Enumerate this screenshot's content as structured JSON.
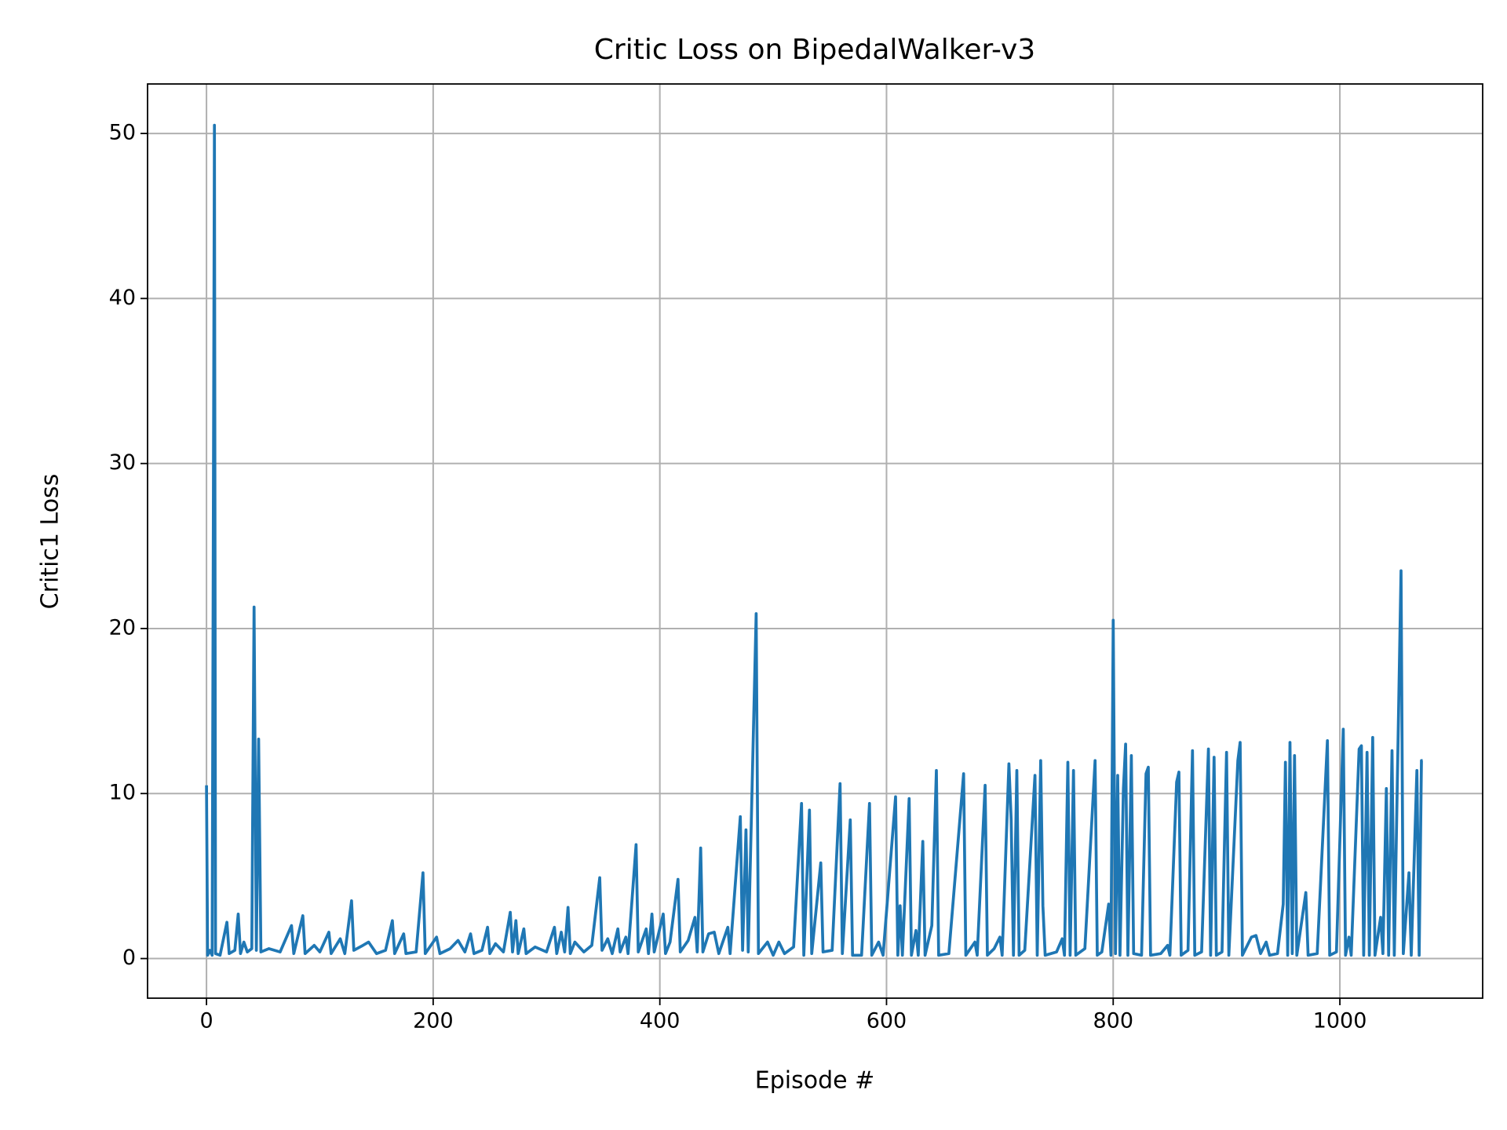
{
  "chart_data": {
    "type": "line",
    "title": "Critic Loss on BipedalWalker-v3",
    "x_label": "Episode #",
    "y_label": "Critic1 Loss",
    "color": "#1f77b4",
    "grid": true,
    "xlim": [
      -52,
      1126
    ],
    "ylim": [
      -2.4,
      53
    ],
    "xticks": [
      0,
      200,
      400,
      600,
      800,
      1000
    ],
    "yticks": [
      0,
      10,
      20,
      30,
      40,
      50
    ],
    "x": [
      0,
      1,
      3,
      5,
      7,
      8,
      12,
      18,
      20,
      25,
      28,
      30,
      33,
      36,
      40,
      42,
      44,
      46,
      48,
      55,
      65,
      75,
      77,
      85,
      87,
      95,
      100,
      108,
      110,
      118,
      122,
      128,
      130,
      138,
      143,
      150,
      158,
      164,
      166,
      174,
      176,
      185,
      191,
      193,
      200,
      203,
      206,
      215,
      222,
      228,
      233,
      236,
      243,
      248,
      250,
      255,
      262,
      268,
      270,
      273,
      275,
      280,
      282,
      290,
      300,
      307,
      309,
      313,
      316,
      319,
      321,
      325,
      333,
      340,
      347,
      349,
      354,
      358,
      363,
      365,
      370,
      372,
      379,
      381,
      388,
      390,
      393,
      395,
      403,
      405,
      409,
      416,
      418,
      425,
      431,
      433,
      436,
      438,
      443,
      448,
      452,
      460,
      462,
      471,
      473,
      476,
      478,
      485,
      487,
      495,
      500,
      505,
      510,
      518,
      525,
      527,
      532,
      534,
      542,
      544,
      552,
      559,
      561,
      568,
      570,
      578,
      585,
      587,
      593,
      597,
      608,
      610,
      612,
      614,
      620,
      622,
      626,
      628,
      632,
      634,
      640,
      644,
      646,
      655,
      668,
      670,
      678,
      680,
      687,
      689,
      695,
      700,
      702,
      708,
      710,
      712,
      715,
      717,
      722,
      731,
      733,
      736,
      738,
      740,
      750,
      755,
      757,
      760,
      762,
      765,
      767,
      775,
      784,
      786,
      790,
      796,
      798,
      800,
      802,
      804,
      806,
      809,
      811,
      813,
      816,
      818,
      825,
      829,
      831,
      833,
      842,
      848,
      850,
      856,
      858,
      860,
      866,
      870,
      872,
      878,
      884,
      886,
      889,
      891,
      896,
      900,
      902,
      910,
      912,
      914,
      922,
      926,
      930,
      935,
      938,
      945,
      950,
      952,
      954,
      956,
      958,
      960,
      962,
      970,
      972,
      980,
      989,
      991,
      997,
      1003,
      1005,
      1008,
      1010,
      1017,
      1019,
      1021,
      1024,
      1026,
      1029,
      1031,
      1036,
      1038,
      1041,
      1043,
      1046,
      1048,
      1054,
      1056,
      1061,
      1063,
      1068,
      1070,
      1072,
      1073
    ],
    "values": [
      10.5,
      0.2,
      0.5,
      0.2,
      50.5,
      0.3,
      0.2,
      2.2,
      0.3,
      0.5,
      2.7,
      0.3,
      1.0,
      0.4,
      0.6,
      21.3,
      0.5,
      13.3,
      0.4,
      0.6,
      0.4,
      2.0,
      0.3,
      2.6,
      0.3,
      0.8,
      0.4,
      1.6,
      0.3,
      1.2,
      0.3,
      3.5,
      0.5,
      0.8,
      1.0,
      0.3,
      0.5,
      2.3,
      0.3,
      1.5,
      0.3,
      0.4,
      5.2,
      0.3,
      1.0,
      1.3,
      0.3,
      0.6,
      1.1,
      0.4,
      1.5,
      0.3,
      0.5,
      1.9,
      0.3,
      0.9,
      0.4,
      2.8,
      0.4,
      2.3,
      0.3,
      1.8,
      0.3,
      0.7,
      0.4,
      1.9,
      0.3,
      1.6,
      0.4,
      3.1,
      0.3,
      1.0,
      0.4,
      0.8,
      4.9,
      0.5,
      1.2,
      0.3,
      1.8,
      0.4,
      1.3,
      0.3,
      6.9,
      0.4,
      1.8,
      0.3,
      2.7,
      0.4,
      2.7,
      0.3,
      1.0,
      4.8,
      0.4,
      1.1,
      2.5,
      0.4,
      6.7,
      0.4,
      1.5,
      1.6,
      0.3,
      1.9,
      0.3,
      8.6,
      0.5,
      7.8,
      0.4,
      20.9,
      0.3,
      1.0,
      0.2,
      1.0,
      0.3,
      0.7,
      9.4,
      0.2,
      9.0,
      0.3,
      5.8,
      0.4,
      0.5,
      10.6,
      0.3,
      8.4,
      0.2,
      0.2,
      9.4,
      0.2,
      1.0,
      0.2,
      9.8,
      0.2,
      3.2,
      0.2,
      9.7,
      0.2,
      1.7,
      0.2,
      7.1,
      0.2,
      2.0,
      11.4,
      0.2,
      0.3,
      11.2,
      0.2,
      1.0,
      0.2,
      10.5,
      0.2,
      0.6,
      1.3,
      0.2,
      11.8,
      8.4,
      0.2,
      11.4,
      0.2,
      0.5,
      11.1,
      0.2,
      12.0,
      3.2,
      0.2,
      0.4,
      1.2,
      0.2,
      11.9,
      0.2,
      11.4,
      0.2,
      0.6,
      12.0,
      0.2,
      0.4,
      3.3,
      0.2,
      20.5,
      0.3,
      11.1,
      0.2,
      10.3,
      13.0,
      0.2,
      12.3,
      0.3,
      0.2,
      11.2,
      11.6,
      0.2,
      0.3,
      0.8,
      0.2,
      10.7,
      11.3,
      0.2,
      0.5,
      12.6,
      0.2,
      0.4,
      12.7,
      0.2,
      12.2,
      0.2,
      0.4,
      12.5,
      0.2,
      12.0,
      13.1,
      0.2,
      1.3,
      1.4,
      0.3,
      1.0,
      0.2,
      0.3,
      3.3,
      11.9,
      0.2,
      13.1,
      0.3,
      12.3,
      0.2,
      4.0,
      0.2,
      0.3,
      13.2,
      0.2,
      0.4,
      13.9,
      0.2,
      1.3,
      0.2,
      12.7,
      12.9,
      0.2,
      12.5,
      0.2,
      13.4,
      0.2,
      2.5,
      0.3,
      10.3,
      0.2,
      12.6,
      0.2,
      23.5,
      0.3,
      5.2,
      0.2,
      11.4,
      0.2,
      12.0,
      12.0
    ]
  }
}
